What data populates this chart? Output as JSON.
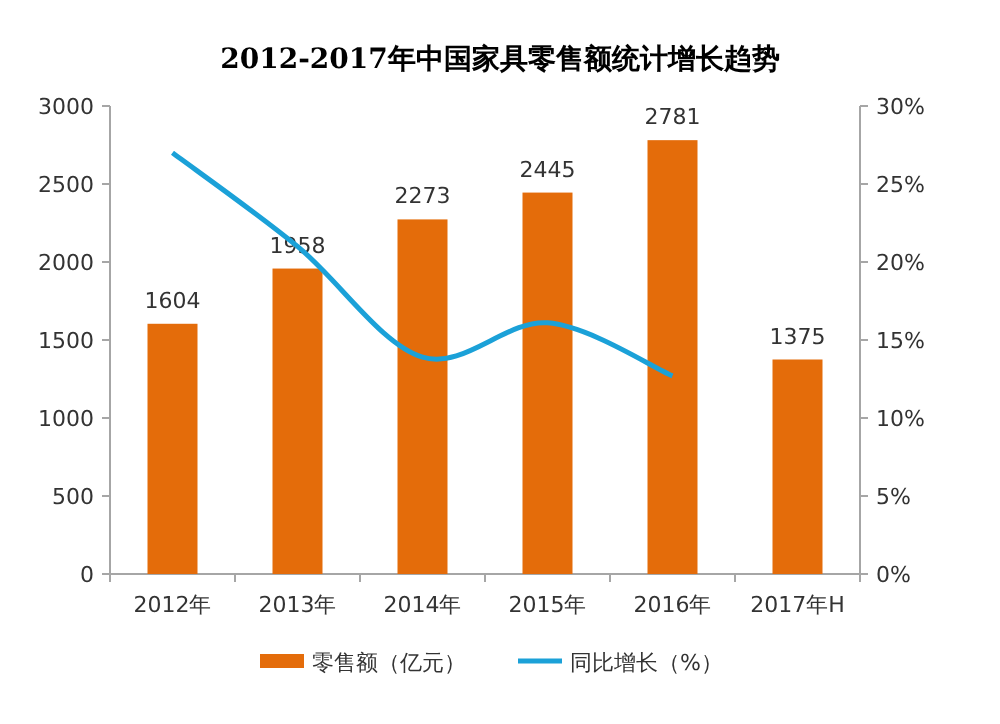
{
  "chart_data": {
    "type": "bar",
    "title": "2012-2017年中国家具零售额统计增长趋势",
    "categories": [
      "2012年",
      "2013年",
      "2014年",
      "2015年",
      "2016年",
      "2017年H"
    ],
    "series": [
      {
        "name": "零售额（亿元）",
        "color": "#e46c0a",
        "values": [
          1604,
          1958,
          2273,
          2445,
          2781,
          1375
        ],
        "value_labels": [
          "1604",
          "1958",
          "2273",
          "2445",
          "2781",
          "1375"
        ]
      },
      {
        "name": "同比增长（%）",
        "type": "line",
        "axis": "y2",
        "color": "#1ba1d8",
        "values": [
          27.0,
          21.0,
          13.9,
          16.1,
          12.7,
          null
        ]
      }
    ],
    "ylim": [
      0,
      3000
    ],
    "yticks": [
      0,
      500,
      1000,
      1500,
      2000,
      2500,
      3000
    ],
    "y2lim": [
      0,
      30
    ],
    "y2ticks": [
      {
        "value": 0,
        "label": "0%"
      },
      {
        "value": 5,
        "label": "5%"
      },
      {
        "value": 10,
        "label": "10%"
      },
      {
        "value": 15,
        "label": "15%"
      },
      {
        "value": 20,
        "label": "20%"
      },
      {
        "value": 25,
        "label": "25%"
      },
      {
        "value": 30,
        "label": "30%"
      }
    ],
    "grid": false,
    "legend": "bottom"
  }
}
